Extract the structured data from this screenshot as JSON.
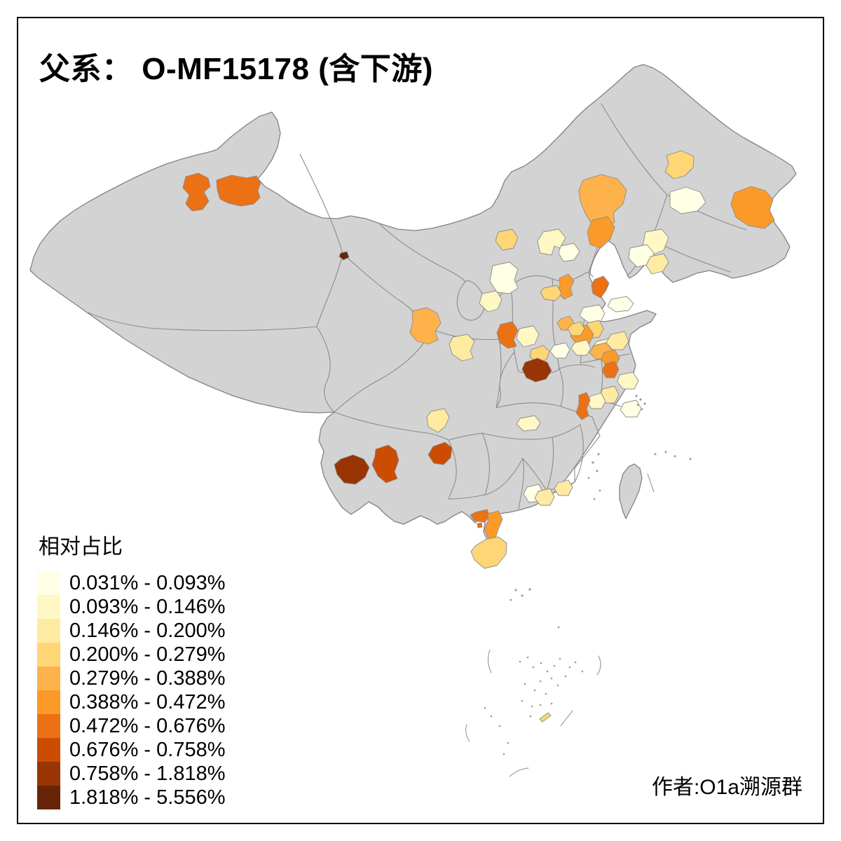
{
  "title": "父系： O-MF15178 (含下游)",
  "attribution": "作者:O1a溯源群",
  "legend": {
    "title": "相对占比",
    "classes": [
      {
        "label": "0.031% - 0.093%",
        "color": "#FFFFE5"
      },
      {
        "label": "0.093% - 0.146%",
        "color": "#FFF8C4"
      },
      {
        "label": "0.146% - 0.200%",
        "color": "#FEEAA1"
      },
      {
        "label": "0.200% - 0.279%",
        "color": "#FED676"
      },
      {
        "label": "0.279% - 0.388%",
        "color": "#FEB24C"
      },
      {
        "label": "0.388% - 0.472%",
        "color": "#FB9A29"
      },
      {
        "label": "0.472% - 0.676%",
        "color": "#EC7014"
      },
      {
        "label": "0.676% - 0.758%",
        "color": "#CC4C02"
      },
      {
        "label": "0.758% - 1.818%",
        "color": "#993404"
      },
      {
        "label": "1.818% - 5.556%",
        "color": "#662506"
      }
    ]
  },
  "map": {
    "land_color": "#d3d3d4",
    "border_color": "#8c8c8c",
    "outline_color": "#828282",
    "background": "#ffffff",
    "regions": [
      {
        "id": "r01",
        "class": 7
      },
      {
        "id": "r02",
        "class": 7
      },
      {
        "id": "r03",
        "class": 10
      },
      {
        "id": "r04",
        "class": 4
      },
      {
        "id": "r05",
        "class": 6
      },
      {
        "id": "r06",
        "class": 1
      },
      {
        "id": "r07",
        "class": 2
      },
      {
        "id": "r08",
        "class": 1
      },
      {
        "id": "r09",
        "class": 3
      },
      {
        "id": "r10",
        "class": 5
      },
      {
        "id": "r11",
        "class": 6
      },
      {
        "id": "r12",
        "class": 4
      },
      {
        "id": "r13",
        "class": 2
      },
      {
        "id": "r14",
        "class": 1
      },
      {
        "id": "r15",
        "class": 6
      },
      {
        "id": "r16",
        "class": 7
      },
      {
        "id": "r17",
        "class": 4
      },
      {
        "id": "r18",
        "class": 1
      },
      {
        "id": "r19",
        "class": 2
      },
      {
        "id": "r20",
        "class": 7
      },
      {
        "id": "r21",
        "class": 2
      },
      {
        "id": "r22",
        "class": 4
      },
      {
        "id": "r23",
        "class": 1
      },
      {
        "id": "r24",
        "class": 4
      },
      {
        "id": "r25",
        "class": 1
      },
      {
        "id": "r26",
        "class": 2
      },
      {
        "id": "r27",
        "class": 3
      },
      {
        "id": "r28",
        "class": 6
      },
      {
        "id": "r29",
        "class": 9
      },
      {
        "id": "r30",
        "class": 5
      },
      {
        "id": "r31",
        "class": 4
      },
      {
        "id": "r32",
        "class": 1
      },
      {
        "id": "r33",
        "class": 2
      },
      {
        "id": "r34",
        "class": 5
      },
      {
        "id": "r35",
        "class": 6
      },
      {
        "id": "r36",
        "class": 7
      },
      {
        "id": "r37",
        "class": 2
      },
      {
        "id": "r38",
        "class": 3
      },
      {
        "id": "r39",
        "class": 2
      },
      {
        "id": "r40",
        "class": 7
      },
      {
        "id": "r41",
        "class": 5
      },
      {
        "id": "r42",
        "class": 3
      },
      {
        "id": "r43",
        "class": 3
      },
      {
        "id": "r44",
        "class": 2
      },
      {
        "id": "r45",
        "class": 9
      },
      {
        "id": "r46",
        "class": 8
      },
      {
        "id": "r47",
        "class": 8
      },
      {
        "id": "r48",
        "class": 7
      },
      {
        "id": "r49",
        "class": 6
      },
      {
        "id": "r50",
        "class": 4
      },
      {
        "id": "r51",
        "class": 1
      },
      {
        "id": "r52",
        "class": 3
      },
      {
        "id": "r53",
        "class": 3
      },
      {
        "id": "r54",
        "class": 7
      },
      {
        "id": "r55",
        "class": 4
      },
      {
        "id": "r56",
        "class": 1
      }
    ]
  }
}
